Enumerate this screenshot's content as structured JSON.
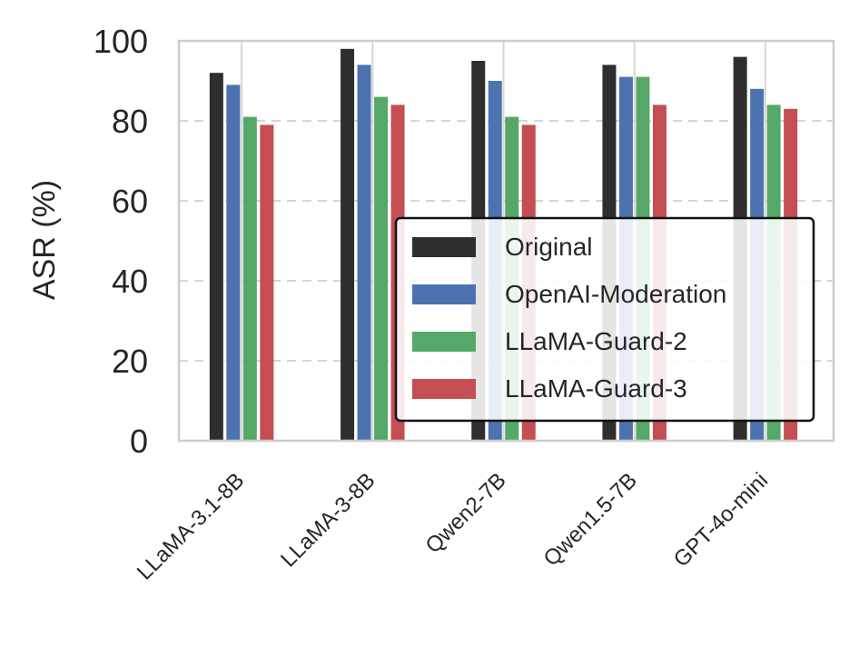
{
  "chart_data": {
    "type": "bar",
    "title": "",
    "xlabel": "",
    "ylabel": "ASR (%)",
    "ylim": [
      0,
      100
    ],
    "yticks": [
      0,
      20,
      40,
      60,
      80,
      100
    ],
    "categories": [
      "LLaMA-3.1-8B",
      "LLaMA-3-8B",
      "Qwen2-7B",
      "Qwen1.5-7B",
      "GPT-4o-mini"
    ],
    "series": [
      {
        "name": "Original",
        "color": "#2e2e2e",
        "values": [
          92,
          98,
          95,
          94,
          96
        ]
      },
      {
        "name": "OpenAI-Moderation",
        "color": "#4c72b0",
        "values": [
          89,
          94,
          90,
          91,
          88
        ]
      },
      {
        "name": "LLaMA-Guard-2",
        "color": "#55a868",
        "values": [
          81,
          86,
          81,
          91,
          84
        ]
      },
      {
        "name": "LLaMA-Guard-3",
        "color": "#c44e52",
        "values": [
          79,
          84,
          79,
          84,
          83
        ]
      }
    ],
    "grid": true,
    "legend_position": "lower-right"
  }
}
